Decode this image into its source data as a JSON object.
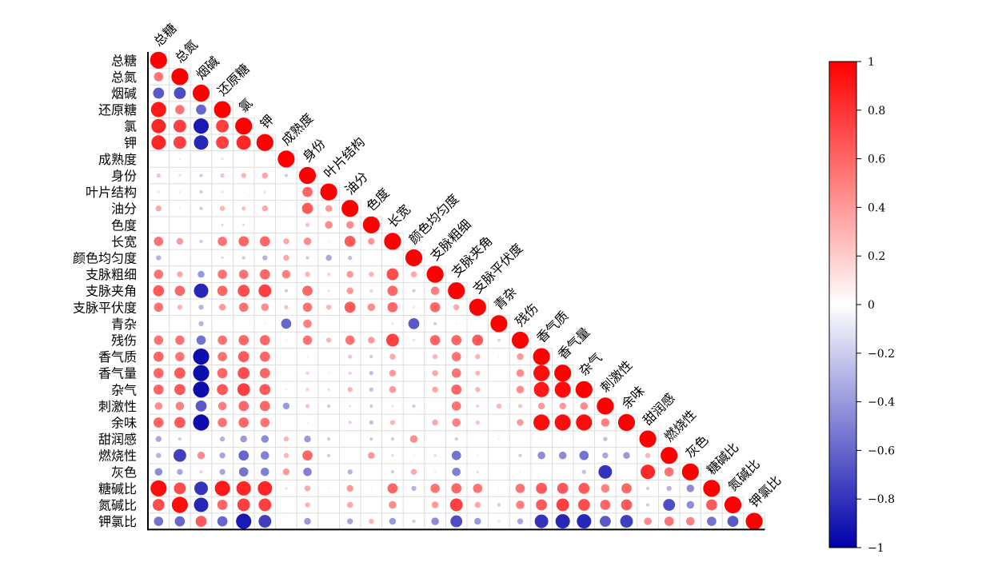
{
  "chart_data": {
    "type": "heatmap",
    "variables": [
      "总糖",
      "总氮",
      "烟碱",
      "还原糖",
      "氯",
      "钾",
      "成熟度",
      "身份",
      "叶片结构",
      "油分",
      "色度",
      "长宽",
      "颜色均匀度",
      "支脉粗细",
      "支脉夹角",
      "支脉平伏度",
      "青杂",
      "残伤",
      "香气质",
      "香气量",
      "杂气",
      "刺激性",
      "余味",
      "甜润感",
      "燃烧性",
      "灰色",
      "糖碱比",
      "氮碱比",
      "钾氯比"
    ],
    "lower_triangle_correlations": [
      [
        1
      ],
      [
        0.55,
        1
      ],
      [
        -0.65,
        -0.7,
        1
      ],
      [
        0.9,
        0.55,
        -0.6,
        1
      ],
      [
        0.85,
        0.75,
        -0.9,
        0.75,
        1
      ],
      [
        0.85,
        0.75,
        -0.85,
        0.75,
        0.85,
        1
      ],
      [
        0.03,
        -0.1,
        0.05,
        0.15,
        0.03,
        0.03,
        1
      ],
      [
        0.25,
        0.15,
        -0.2,
        0.25,
        0.3,
        0.35,
        -0.2,
        1
      ],
      [
        0.15,
        -0.1,
        -0.2,
        0.15,
        0.1,
        0.15,
        0.02,
        0.6,
        1
      ],
      [
        0.35,
        0.1,
        -0.2,
        0.3,
        0.25,
        0.35,
        0.08,
        0.65,
        0.4,
        1
      ],
      [
        0.02,
        -0.05,
        -0.05,
        -0.15,
        -0.15,
        0.02,
        0.0,
        0.25,
        0.45,
        0.45,
        1
      ],
      [
        0.55,
        0.4,
        -0.2,
        0.55,
        0.6,
        0.6,
        0.35,
        0.45,
        0.1,
        0.65,
        0.4,
        1
      ],
      [
        -0.3,
        0.02,
        0.02,
        -0.15,
        -0.2,
        -0.3,
        0.35,
        -0.2,
        -0.35,
        -0.25,
        0.0,
        0.1,
        1
      ],
      [
        0.55,
        0.35,
        -0.4,
        0.55,
        0.55,
        0.6,
        0.5,
        0.3,
        0.2,
        0.4,
        0.3,
        0.7,
        0.35,
        1
      ],
      [
        0.65,
        0.6,
        -0.85,
        0.6,
        0.7,
        0.75,
        -0.2,
        0.6,
        0.15,
        0.4,
        0.2,
        0.6,
        -0.2,
        0.5,
        1
      ],
      [
        0.55,
        0.3,
        -0.3,
        0.4,
        0.55,
        0.45,
        0.25,
        0.55,
        0.3,
        0.65,
        0.45,
        0.6,
        0.15,
        0.6,
        0.35,
        1
      ],
      [
        0.02,
        -0.05,
        -0.3,
        0.05,
        -0.05,
        -0.1,
        -0.6,
        0.5,
        0.02,
        0.05,
        -0.05,
        0.15,
        -0.65,
        -0.2,
        0.1,
        0.02,
        1
      ],
      [
        0.55,
        0.55,
        -0.55,
        0.55,
        0.6,
        0.6,
        0.1,
        0.55,
        0.3,
        0.55,
        0.4,
        0.75,
        0.15,
        0.6,
        0.6,
        0.65,
        0.2,
        1
      ],
      [
        0.6,
        0.55,
        -0.95,
        0.55,
        0.65,
        0.6,
        0.0,
        0.1,
        -0.05,
        0.25,
        -0.2,
        0.35,
        0.0,
        0.3,
        0.55,
        0.3,
        0.1,
        0.4,
        1
      ],
      [
        0.6,
        0.65,
        -0.95,
        0.6,
        0.7,
        0.6,
        0.05,
        0.2,
        -0.1,
        0.2,
        -0.25,
        0.4,
        0.05,
        0.35,
        0.55,
        0.3,
        0.05,
        0.45,
        0.95,
        1
      ],
      [
        0.6,
        0.65,
        -0.95,
        0.65,
        0.75,
        0.65,
        -0.1,
        0.2,
        -0.15,
        0.3,
        -0.25,
        0.4,
        0.0,
        0.35,
        0.6,
        0.3,
        0.05,
        0.45,
        0.9,
        0.95,
        1
      ],
      [
        0.45,
        0.5,
        -0.65,
        0.5,
        0.6,
        0.6,
        -0.4,
        0.25,
        -0.2,
        0.15,
        -0.2,
        0.15,
        -0.2,
        0.05,
        0.55,
        0.2,
        0.3,
        0.25,
        0.4,
        0.4,
        0.45,
        1
      ],
      [
        0.6,
        0.65,
        -0.95,
        0.55,
        0.6,
        0.55,
        0.0,
        0.1,
        -0.05,
        0.2,
        -0.25,
        0.3,
        0.05,
        0.35,
        0.5,
        0.25,
        0.05,
        0.4,
        0.95,
        0.95,
        0.95,
        0.5,
        1
      ],
      [
        -0.35,
        -0.2,
        0.05,
        -0.3,
        -0.4,
        -0.45,
        0.3,
        -0.4,
        -0.2,
        0.05,
        -0.2,
        -0.2,
        0.45,
        0.05,
        -0.2,
        -0.05,
        -0.1,
        -0.05,
        0.1,
        0.1,
        -0.05,
        -0.25,
        0.05,
        1
      ],
      [
        -0.3,
        -0.75,
        0.45,
        -0.35,
        -0.6,
        -0.5,
        0.3,
        0.6,
        -0.2,
        0.05,
        0.4,
        -0.15,
        0.1,
        -0.15,
        -0.55,
        -0.1,
        0.05,
        -0.2,
        -0.45,
        -0.45,
        -0.55,
        -0.35,
        -0.4,
        0.3,
        1
      ],
      [
        -0.45,
        -0.35,
        0.2,
        -0.35,
        -0.55,
        -0.5,
        0.4,
        -0.5,
        -0.05,
        -0.3,
        -0.05,
        -0.2,
        0.35,
        -0.1,
        -0.5,
        -0.15,
        -0.05,
        -0.1,
        0.03,
        0.03,
        -0.25,
        -0.8,
        0.03,
        0.85,
        0.55,
        1
      ],
      [
        0.95,
        0.7,
        -0.8,
        0.9,
        0.85,
        0.85,
        0.15,
        0.35,
        0.1,
        0.4,
        0.1,
        0.6,
        -0.3,
        0.55,
        0.6,
        0.55,
        0.1,
        0.55,
        0.65,
        0.65,
        0.65,
        0.5,
        0.6,
        -0.2,
        -0.3,
        -0.45,
        1
      ],
      [
        0.7,
        0.95,
        -0.85,
        0.6,
        0.75,
        0.75,
        0.0,
        0.3,
        0.05,
        0.35,
        -0.05,
        0.45,
        0.05,
        0.4,
        0.75,
        0.35,
        -0.2,
        0.5,
        0.65,
        0.75,
        0.7,
        0.6,
        0.65,
        -0.2,
        -0.7,
        -0.45,
        0.65,
        1
      ],
      [
        -0.55,
        -0.6,
        0.65,
        -0.6,
        -0.9,
        -0.75,
        0.05,
        -0.4,
        0.05,
        -0.35,
        0.3,
        -0.4,
        -0.2,
        -0.45,
        -0.7,
        -0.4,
        0.15,
        -0.35,
        -0.8,
        -0.85,
        -0.85,
        -0.65,
        -0.75,
        0.45,
        0.55,
        0.5,
        -0.55,
        -0.65,
        1
      ]
    ],
    "colorbar": {
      "range": [
        -1,
        1
      ],
      "ticks": [
        1,
        0.8,
        0.6,
        0.4,
        0.2,
        0,
        -0.2,
        -0.4,
        -0.6,
        -0.8,
        -1
      ],
      "tick_labels": [
        "1",
        "0.8",
        "0.6",
        "0.4",
        "0.2",
        "0",
        "−0.2",
        "−0.4",
        "−0.6",
        "−0.8",
        "−1"
      ],
      "colors": {
        "positive": "#ff0000",
        "zero": "#ffffff",
        "negative": "#0000aa"
      }
    },
    "legend_placement": "right",
    "grid": true
  }
}
